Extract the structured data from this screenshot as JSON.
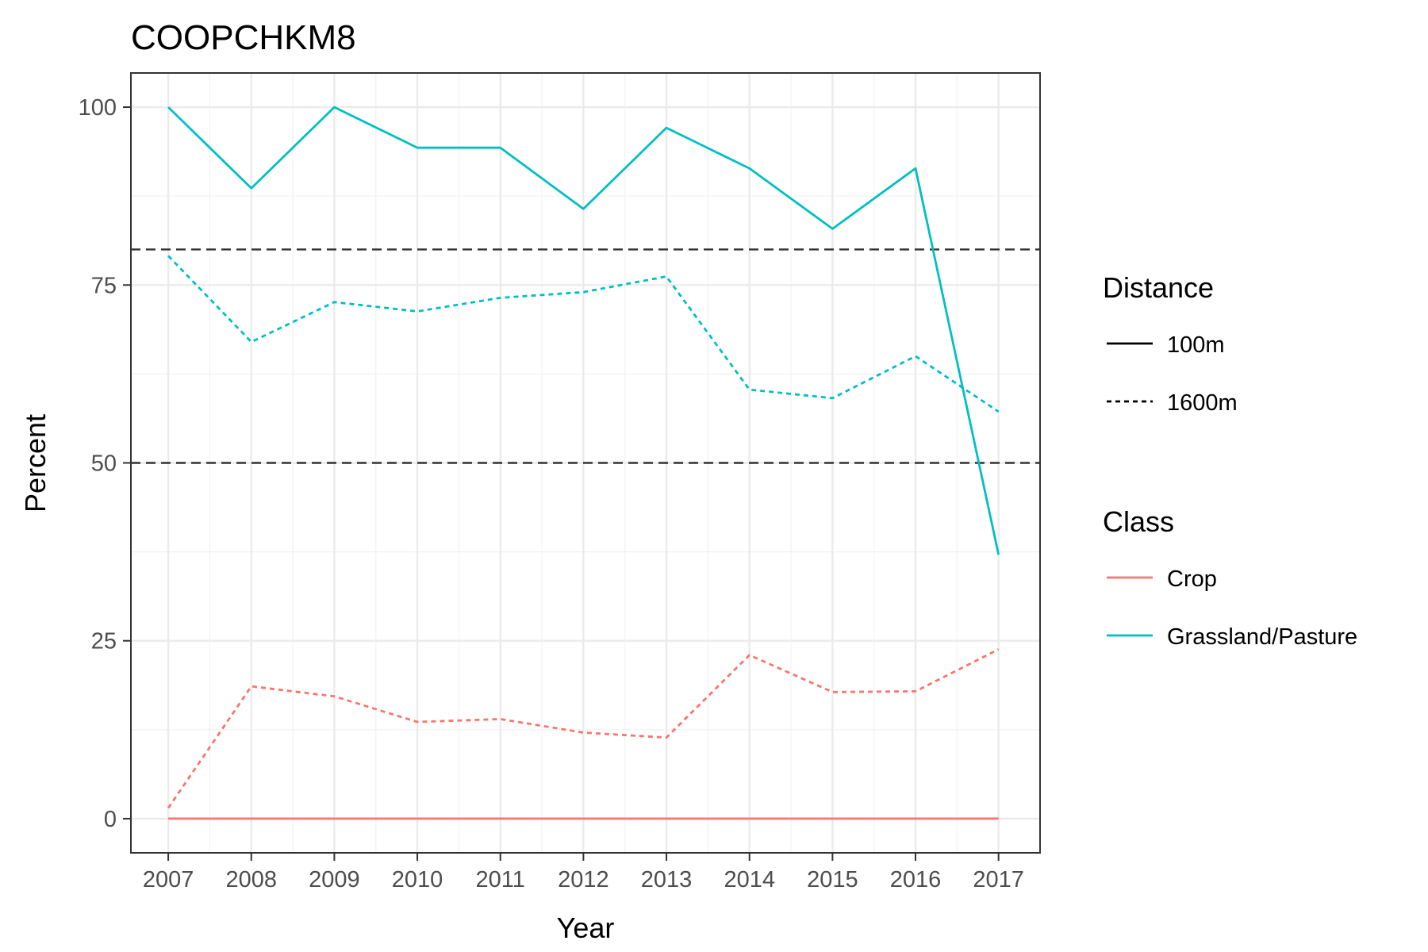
{
  "chart_data": {
    "type": "line",
    "title": "COOPCHKM8",
    "xlabel": "Year",
    "ylabel": "Percent",
    "x": [
      2007,
      2008,
      2009,
      2010,
      2011,
      2012,
      2013,
      2014,
      2015,
      2016,
      2017
    ],
    "xlim": [
      2006.55,
      2017.5
    ],
    "ylim": [
      -4.8,
      104.8
    ],
    "yticks": [
      0,
      25,
      50,
      75,
      100
    ],
    "reference_lines": [
      80,
      50
    ],
    "grid": true,
    "series": [
      {
        "class": "Crop",
        "distance": "100m",
        "values": [
          0,
          0,
          0,
          0,
          0,
          0,
          0,
          0,
          0,
          0,
          0
        ]
      },
      {
        "class": "Crop",
        "distance": "1600m",
        "values": [
          1.5,
          18.6,
          17.2,
          13.6,
          14.0,
          12.1,
          11.4,
          23.0,
          17.8,
          17.9,
          23.8
        ]
      },
      {
        "class": "Grassland/Pasture",
        "distance": "100m",
        "values": [
          100,
          88.6,
          100,
          94.3,
          94.3,
          85.7,
          97.1,
          91.4,
          82.9,
          91.4,
          37.1
        ]
      },
      {
        "class": "Grassland/Pasture",
        "distance": "1600m",
        "values": [
          79.1,
          67.0,
          72.6,
          71.3,
          73.2,
          74.0,
          76.2,
          60.3,
          59.1,
          65.0,
          57.2
        ]
      }
    ],
    "colors": {
      "Crop": "#F8766D",
      "Grassland/Pasture": "#00BFC4",
      "reference": "#333333"
    },
    "legend": {
      "placement": "right",
      "distance_title": "Distance",
      "distance_items": [
        "100m",
        "1600m"
      ],
      "class_title": "Class",
      "class_items": [
        "Crop",
        "Grassland/Pasture"
      ]
    }
  }
}
